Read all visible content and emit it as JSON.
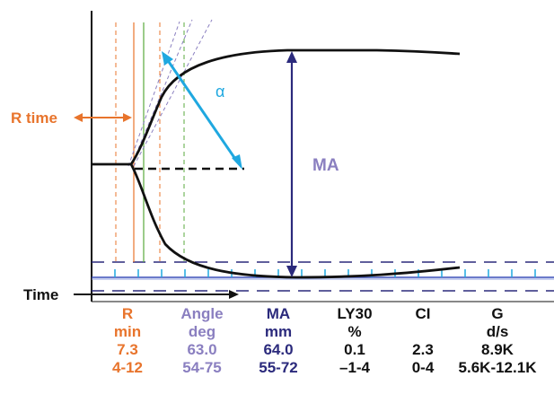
{
  "colors": {
    "r": "#e8742c",
    "angle": "#8a7fc0",
    "ma": "#2b2a7c",
    "black": "#111111",
    "green": "#5aaa3c",
    "alpha": "#1fa8e0",
    "baseline": "#3a4fb8"
  },
  "labels": {
    "r_time": "R time",
    "alpha": "α",
    "ma": "MA",
    "time": "Time"
  },
  "table": {
    "columns": [
      {
        "name": "R",
        "unit": "min",
        "value": "7.3",
        "range": "4-12",
        "color": "#e8742c"
      },
      {
        "name": "Angle",
        "unit": "deg",
        "value": "63.0",
        "range": "54-75",
        "color": "#8a7fc0"
      },
      {
        "name": "MA",
        "unit": "mm",
        "value": "64.0",
        "range": "55-72",
        "color": "#2b2a7c"
      },
      {
        "name": "LY30",
        "unit": "%",
        "value": "0.1",
        "range": "–1-4",
        "color": "#111111"
      },
      {
        "name": "CI",
        "unit": "",
        "value": "2.3",
        "range": "0-4",
        "color": "#111111"
      },
      {
        "name": "G",
        "unit": "d/s",
        "value": "8.9K",
        "range": "5.6K-12.1K",
        "color": "#111111"
      }
    ]
  }
}
